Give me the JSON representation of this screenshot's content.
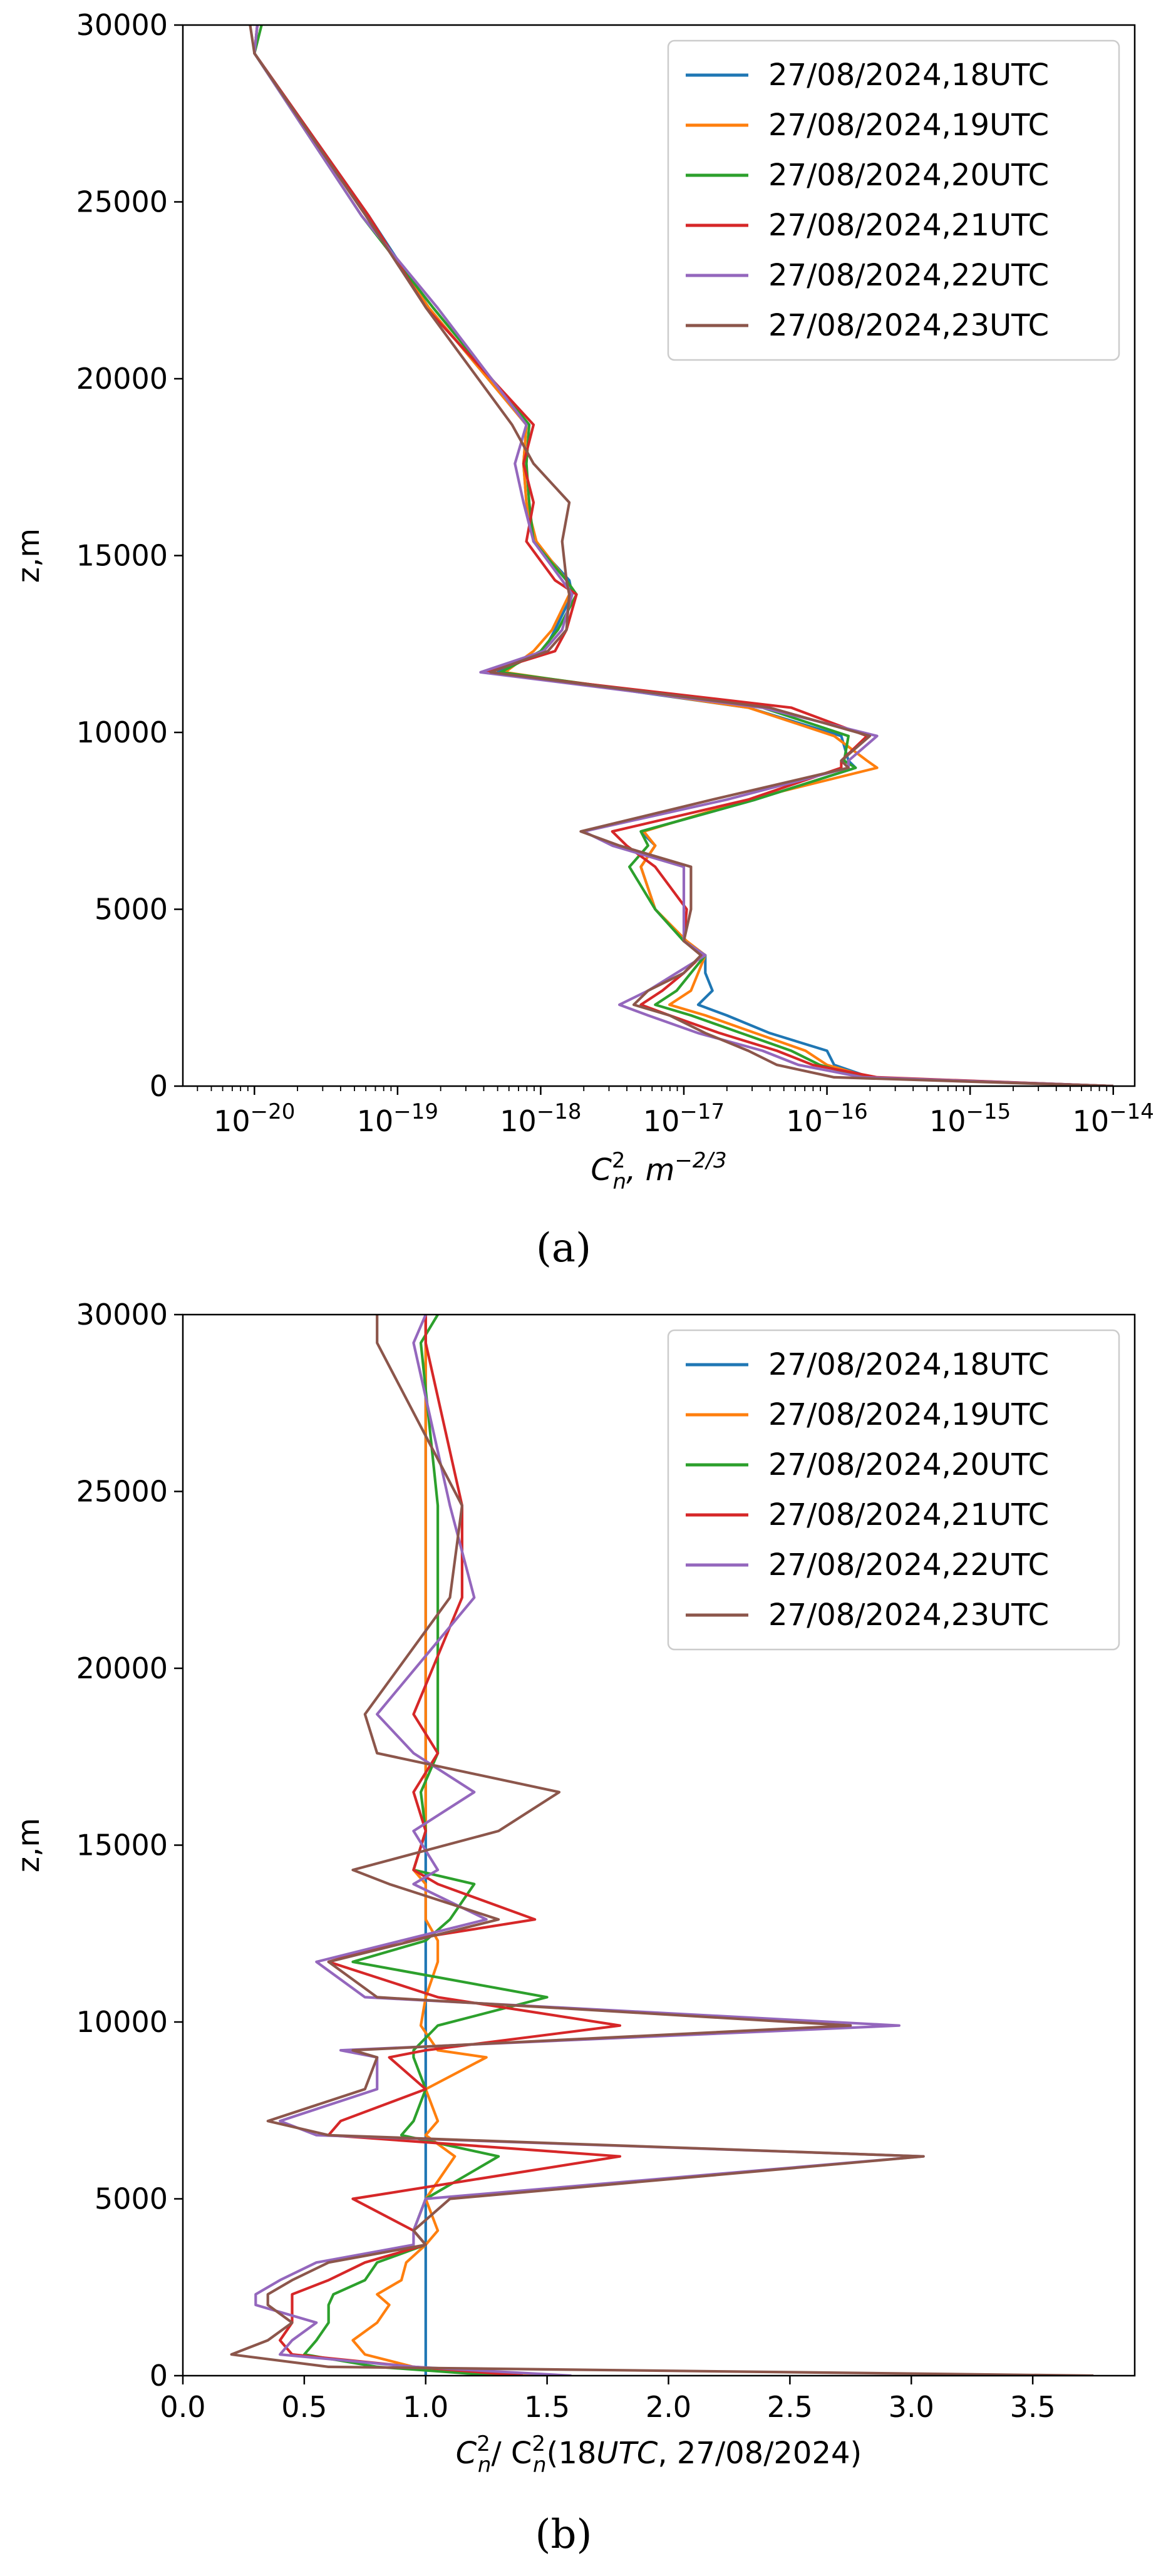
{
  "colors": {
    "18UTC": "#1f77b4",
    "19UTC": "#ff7f0e",
    "20UTC": "#2ca02c",
    "21UTC": "#d62728",
    "22UTC": "#9467bd",
    "23UTC": "#8c564b"
  },
  "chart_data": [
    {
      "type": "line",
      "panel": "(a)",
      "xscale": "log",
      "xlabel_main": "C",
      "xlabel_sub": "n",
      "xlabel_sup": "2",
      "xlabel_rest": ", m",
      "xlabel_unit_sup": "−2/3",
      "ylabel": "z,m",
      "xlim_exp": [
        -20.5,
        -13.85
      ],
      "ylim": [
        0,
        30000
      ],
      "xticks": [
        {
          "exp": -20,
          "label": "10",
          "sup": "−20"
        },
        {
          "exp": -19,
          "label": "10",
          "sup": "−19"
        },
        {
          "exp": -18,
          "label": "10",
          "sup": "−18"
        },
        {
          "exp": -17,
          "label": "10",
          "sup": "−17"
        },
        {
          "exp": -16,
          "label": "10",
          "sup": "−16"
        },
        {
          "exp": -15,
          "label": "10",
          "sup": "−15"
        },
        {
          "exp": -14,
          "label": "10",
          "sup": "−14"
        }
      ],
      "yticks": [
        "0",
        "5000",
        "10000",
        "15000",
        "20000",
        "25000",
        "30000"
      ],
      "ytick_values": [
        0,
        5000,
        10000,
        15000,
        20000,
        25000,
        30000
      ],
      "legend_position": "top-right",
      "z": [
        0,
        250,
        600,
        1000,
        1500,
        2000,
        2300,
        2700,
        3200,
        3700,
        4100,
        5000,
        6200,
        6800,
        7200,
        8100,
        9000,
        9200,
        9900,
        10700,
        11700,
        12300,
        12900,
        13900,
        14300,
        15400,
        16500,
        17600,
        18700,
        22000,
        24600,
        29200,
        30000
      ],
      "series": [
        {
          "name": "27/08/2024,18UTC",
          "color_key": "18UTC",
          "log10": [
            -14.0,
            -15.7,
            -15.95,
            -16.0,
            -16.4,
            -16.7,
            -16.9,
            -16.8,
            -16.85,
            -16.85,
            -17.0,
            -17.2,
            -17.3,
            -17.2,
            -17.3,
            -16.5,
            -15.8,
            -15.85,
            -15.9,
            -16.55,
            -18.3,
            -17.98,
            -17.9,
            -17.78,
            -17.8,
            -18.05,
            -18.1,
            -18.12,
            -18.1,
            -18.78,
            -19.2,
            -20.0,
            -19.98
          ]
        },
        {
          "name": "27/08/2024,19UTC",
          "color_key": "19UTC",
          "log10": [
            -14.0,
            -15.7,
            -16.0,
            -16.15,
            -16.5,
            -16.85,
            -17.1,
            -16.95,
            -16.9,
            -16.85,
            -16.98,
            -17.2,
            -17.3,
            -17.2,
            -17.28,
            -16.55,
            -15.65,
            -15.72,
            -15.95,
            -16.55,
            -18.25,
            -18.05,
            -17.92,
            -17.8,
            -17.82,
            -18.03,
            -18.1,
            -18.12,
            -18.1,
            -18.78,
            -19.22,
            -20.0,
            -19.98
          ]
        },
        {
          "name": "27/08/2024,20UTC",
          "color_key": "20UTC",
          "log10": [
            -14.0,
            -15.75,
            -16.05,
            -16.25,
            -16.6,
            -16.95,
            -17.2,
            -17.05,
            -16.95,
            -16.85,
            -17.0,
            -17.2,
            -17.38,
            -17.25,
            -17.3,
            -16.5,
            -15.8,
            -15.88,
            -15.85,
            -16.45,
            -18.28,
            -18.0,
            -17.88,
            -17.75,
            -17.82,
            -18.05,
            -18.08,
            -18.1,
            -18.08,
            -18.75,
            -19.25,
            -20.0,
            -19.95
          ]
        },
        {
          "name": "27/08/2024,21UTC",
          "color_key": "21UTC",
          "log10": [
            -14.0,
            -15.65,
            -16.1,
            -16.35,
            -16.75,
            -17.1,
            -17.3,
            -17.15,
            -17.0,
            -16.87,
            -17.0,
            -16.98,
            -17.2,
            -17.4,
            -17.5,
            -16.55,
            -15.9,
            -15.9,
            -15.72,
            -16.25,
            -18.38,
            -17.9,
            -17.82,
            -17.75,
            -17.9,
            -18.1,
            -18.05,
            -18.12,
            -18.05,
            -18.8,
            -19.2,
            -20.0,
            -19.98
          ]
        },
        {
          "name": "27/08/2024,22UTC",
          "color_key": "22UTC",
          "log10": [
            -14.0,
            -15.75,
            -16.2,
            -16.45,
            -16.9,
            -17.25,
            -17.45,
            -17.25,
            -17.05,
            -16.85,
            -17.0,
            -17.0,
            -17.0,
            -17.5,
            -17.7,
            -16.7,
            -15.85,
            -15.85,
            -15.65,
            -16.45,
            -18.42,
            -17.98,
            -17.85,
            -17.78,
            -17.85,
            -18.05,
            -18.12,
            -18.18,
            -18.1,
            -18.72,
            -19.25,
            -20.0,
            -19.98
          ]
        },
        {
          "name": "27/08/2024,23UTC",
          "color_key": "23UTC",
          "log10": [
            -14.0,
            -15.95,
            -16.35,
            -16.55,
            -16.85,
            -17.1,
            -17.35,
            -17.25,
            -17.0,
            -16.88,
            -17.0,
            -16.95,
            -16.95,
            -17.45,
            -17.72,
            -16.8,
            -15.85,
            -15.9,
            -15.7,
            -16.4,
            -18.35,
            -17.95,
            -17.82,
            -17.8,
            -17.82,
            -17.85,
            -17.8,
            -18.05,
            -18.2,
            -18.8,
            -19.22,
            -20.0,
            -20.03
          ]
        }
      ]
    },
    {
      "type": "line",
      "panel": "(b)",
      "xscale": "linear",
      "xlabel_main": "C",
      "xlabel_sub": "n",
      "xlabel_sup": "2",
      "xlabel_mid": "/ C",
      "xlabel_sub2": "n",
      "xlabel_sup2": "2",
      "xlabel_rest": "(18",
      "xlabel_italic": "UTC",
      "xlabel_end": ", 27/08/2024)",
      "ylabel": "z,m",
      "xlim": [
        0.0,
        3.92
      ],
      "ylim": [
        0,
        30000
      ],
      "xticks": [
        "0.0",
        "0.5",
        "1.0",
        "1.5",
        "2.0",
        "2.5",
        "3.0",
        "3.5"
      ],
      "xtick_values": [
        0.0,
        0.5,
        1.0,
        1.5,
        2.0,
        2.5,
        3.0,
        3.5
      ],
      "yticks": [
        "0",
        "5000",
        "10000",
        "15000",
        "20000",
        "25000",
        "30000"
      ],
      "ytick_values": [
        0,
        5000,
        10000,
        15000,
        20000,
        25000,
        30000
      ],
      "legend_position": "top-right",
      "z": [
        0,
        250,
        600,
        1000,
        1500,
        2000,
        2300,
        2700,
        3200,
        3700,
        4100,
        5000,
        6200,
        6800,
        7200,
        8100,
        9000,
        9200,
        9900,
        10700,
        11700,
        12300,
        12900,
        13900,
        14300,
        15400,
        16500,
        17600,
        18700,
        22000,
        24600,
        29200,
        30000
      ],
      "series": [
        {
          "name": "27/08/2024,18UTC",
          "color_key": "18UTC",
          "values": [
            1.0,
            1.0,
            1.0,
            1.0,
            1.0,
            1.0,
            1.0,
            1.0,
            1.0,
            1.0,
            1.0,
            1.0,
            1.0,
            1.0,
            1.0,
            1.0,
            1.0,
            1.0,
            1.0,
            1.0,
            1.0,
            1.0,
            1.0,
            1.0,
            1.0,
            1.0,
            1.0,
            1.0,
            1.0,
            1.0,
            1.0,
            1.0,
            1.0
          ]
        },
        {
          "name": "27/08/2024,19UTC",
          "color_key": "19UTC",
          "values": [
            1.5,
            0.95,
            0.75,
            0.7,
            0.8,
            0.85,
            0.8,
            0.9,
            0.92,
            1.0,
            1.05,
            1.0,
            1.12,
            1.0,
            1.05,
            1.0,
            1.25,
            1.05,
            0.98,
            1.0,
            1.05,
            1.05,
            1.0,
            1.0,
            0.95,
            1.0,
            1.0,
            1.0,
            1.0,
            1.0,
            1.0,
            1.0,
            1.0
          ]
        },
        {
          "name": "27/08/2024,20UTC",
          "color_key": "20UTC",
          "values": [
            1.3,
            0.8,
            0.5,
            0.55,
            0.6,
            0.6,
            0.62,
            0.75,
            0.8,
            1.0,
            0.95,
            1.0,
            1.3,
            0.9,
            0.95,
            1.0,
            0.95,
            0.95,
            1.05,
            1.5,
            0.7,
            1.0,
            1.1,
            1.2,
            0.95,
            1.0,
            0.98,
            1.05,
            1.05,
            1.05,
            1.05,
            0.98,
            1.05
          ]
        },
        {
          "name": "27/08/2024,21UTC",
          "color_key": "21UTC",
          "values": [
            1.4,
            0.95,
            0.45,
            0.4,
            0.45,
            0.45,
            0.45,
            0.6,
            0.75,
            1.0,
            0.95,
            0.7,
            1.8,
            0.6,
            0.65,
            1.0,
            0.85,
            1.0,
            1.8,
            1.05,
            0.6,
            0.9,
            1.45,
            1.05,
            0.95,
            1.0,
            0.95,
            1.05,
            0.95,
            1.15,
            1.15,
            1.0,
            1.0
          ]
        },
        {
          "name": "27/08/2024,22UTC",
          "color_key": "22UTC",
          "values": [
            1.6,
            0.95,
            0.4,
            0.45,
            0.55,
            0.3,
            0.3,
            0.4,
            0.55,
            0.95,
            0.95,
            1.0,
            3.05,
            0.55,
            0.4,
            0.8,
            0.8,
            0.65,
            2.95,
            0.75,
            0.55,
            0.9,
            1.25,
            0.95,
            1.05,
            0.95,
            1.2,
            0.95,
            0.8,
            1.2,
            1.1,
            0.95,
            1.0
          ]
        },
        {
          "name": "27/08/2024,23UTC",
          "color_key": "23UTC",
          "values": [
            3.75,
            0.6,
            0.2,
            0.35,
            0.45,
            0.35,
            0.35,
            0.45,
            0.6,
            1.0,
            0.95,
            1.1,
            3.05,
            0.6,
            0.35,
            0.75,
            0.8,
            0.7,
            2.75,
            0.8,
            0.6,
            0.95,
            1.3,
            0.85,
            0.7,
            1.3,
            1.55,
            0.8,
            0.75,
            1.1,
            1.15,
            0.8,
            0.8
          ]
        }
      ]
    }
  ],
  "captions": [
    "(a)",
    "(b)"
  ]
}
